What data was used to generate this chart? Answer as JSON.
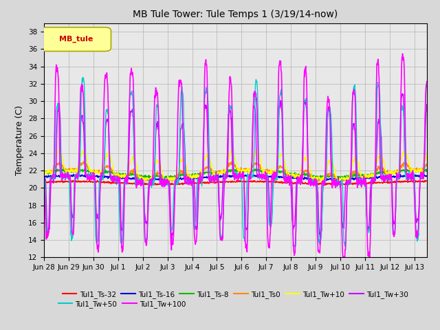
{
  "title": "MB Tule Tower: Tule Temps 1 (3/19/14-now)",
  "ylabel": "Temperature (C)",
  "ylim": [
    12,
    39
  ],
  "yticks": [
    12,
    14,
    16,
    18,
    20,
    22,
    24,
    26,
    28,
    30,
    32,
    34,
    36,
    38
  ],
  "xlabel_dates": [
    "Jun 28",
    "Jun 29",
    "Jun 30",
    "Jul 1",
    "Jul 2",
    "Jul 3",
    "Jul 4",
    "Jul 5",
    "Jul 6",
    "Jul 7",
    "Jul 8",
    "Jul 9",
    "Jul 10",
    "Jul 11",
    "Jul 12",
    "Jul 13"
  ],
  "n_days": 15.5,
  "background_color": "#d8d8d8",
  "plot_bg_color": "#e8e8e8",
  "legend_box_color": "#ffff99",
  "legend_box_edge": "#aaaa00",
  "legend_label": "MB_tule",
  "series_order": [
    "Tul1_Ts-32",
    "Tul1_Ts-16",
    "Tul1_Ts-8",
    "Tul1_Ts0",
    "Tul1_Tw+10",
    "Tul1_Tw+30",
    "Tul1_Tw+50",
    "Tul1_Tw+100"
  ],
  "series": {
    "Tul1_Ts-32": {
      "color": "#ff0000",
      "lw": 1.0,
      "base": 20.6,
      "amp": 0.15,
      "daily_amp": 0.0,
      "spike_amp": 0.0,
      "noise": 0.05
    },
    "Tul1_Ts-16": {
      "color": "#0000dd",
      "lw": 1.0,
      "base": 21.2,
      "amp": 0.2,
      "daily_amp": 0.0,
      "spike_amp": 0.0,
      "noise": 0.06
    },
    "Tul1_Ts-8": {
      "color": "#00bb00",
      "lw": 1.0,
      "base": 21.6,
      "amp": 0.35,
      "daily_amp": 0.15,
      "spike_amp": 0.0,
      "noise": 0.08
    },
    "Tul1_Ts0": {
      "color": "#ff8800",
      "lw": 1.0,
      "base": 21.5,
      "amp": 0.6,
      "daily_amp": 0.8,
      "spike_amp": 0.0,
      "noise": 0.1
    },
    "Tul1_Tw+10": {
      "color": "#ffff00",
      "lw": 1.0,
      "base": 21.5,
      "amp": 0.5,
      "daily_amp": 2.2,
      "spike_amp": 0.0,
      "noise": 0.12
    },
    "Tul1_Tw+30": {
      "color": "#cc00ff",
      "lw": 1.0,
      "base": 21.0,
      "amp": 0.4,
      "daily_amp": 0.0,
      "spike_amp": 8.0,
      "noise": 0.2
    },
    "Tul1_Tw+50": {
      "color": "#00cccc",
      "lw": 1.0,
      "base": 21.0,
      "amp": 0.4,
      "daily_amp": 0.0,
      "spike_amp": 9.5,
      "noise": 0.2
    },
    "Tul1_Tw+100": {
      "color": "#ff00ff",
      "lw": 1.2,
      "base": 21.0,
      "amp": 0.4,
      "daily_amp": 0.0,
      "spike_amp": 11.5,
      "noise": 0.25
    }
  },
  "grid_color": "#bbbbbb"
}
